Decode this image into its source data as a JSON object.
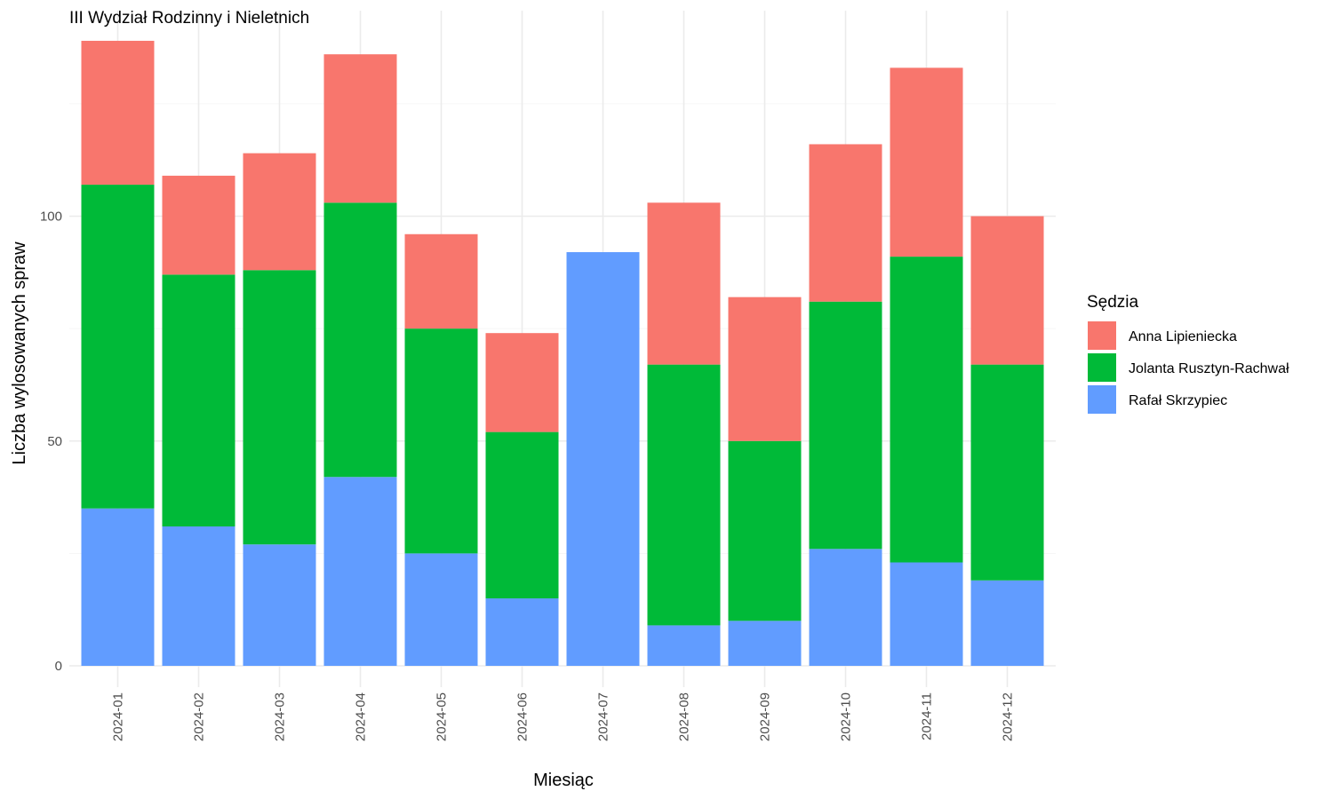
{
  "chart_data": {
    "type": "bar",
    "stacked": true,
    "title": "III Wydział Rodzinny i Nieletnich",
    "xlabel": "Miesiąc",
    "ylabel": "Liczba wylosowanych spraw",
    "ylim": [
      0,
      140
    ],
    "yticks": [
      0,
      50,
      100
    ],
    "grid": true,
    "legend": {
      "title": "Sędzia",
      "position": "right"
    },
    "categories": [
      "2024-01",
      "2024-02",
      "2024-03",
      "2024-04",
      "2024-05",
      "2024-06",
      "2024-07",
      "2024-08",
      "2024-09",
      "2024-10",
      "2024-11",
      "2024-12"
    ],
    "series": [
      {
        "name": "Rafał Skrzypiec",
        "color": "#619CFF",
        "values": [
          35,
          31,
          27,
          42,
          25,
          15,
          92,
          9,
          10,
          26,
          23,
          19
        ]
      },
      {
        "name": "Jolanta Rusztyn-Rachwał",
        "color": "#00BA38",
        "values": [
          72,
          56,
          61,
          61,
          50,
          37,
          0,
          58,
          40,
          55,
          68,
          48
        ]
      },
      {
        "name": "Anna Lipieniecka",
        "color": "#F8766D",
        "values": [
          32,
          22,
          26,
          33,
          21,
          22,
          0,
          36,
          32,
          35,
          42,
          33
        ]
      }
    ]
  }
}
